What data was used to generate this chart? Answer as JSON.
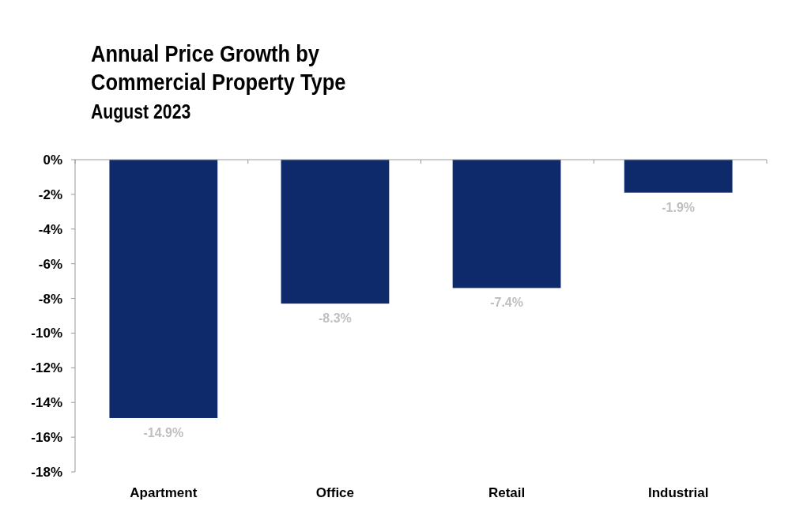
{
  "chart_data": {
    "type": "bar",
    "title": "Annual Price Growth by Commercial Property Type",
    "subtitle": "August 2023",
    "categories": [
      "Apartment",
      "Office",
      "Retail",
      "Industrial"
    ],
    "values": [
      -14.9,
      -8.3,
      -7.4,
      -1.9
    ],
    "value_labels": [
      "-14.9%",
      "-8.3%",
      "-7.4%",
      "-1.9%"
    ],
    "color": "#0e2a6b",
    "ylim": [
      -18,
      0
    ],
    "yticks": [
      {
        "value": 0,
        "label": "0%"
      },
      {
        "value": -2,
        "label": "-2%"
      },
      {
        "value": -4,
        "label": "-4%"
      },
      {
        "value": -6,
        "label": "-6%"
      },
      {
        "value": -8,
        "label": "-8%"
      },
      {
        "value": -10,
        "label": "-10%"
      },
      {
        "value": -12,
        "label": "-12%"
      },
      {
        "value": -14,
        "label": "-14%"
      },
      {
        "value": -16,
        "label": "-16%"
      },
      {
        "value": -18,
        "label": "-18%"
      }
    ],
    "grid": false
  }
}
